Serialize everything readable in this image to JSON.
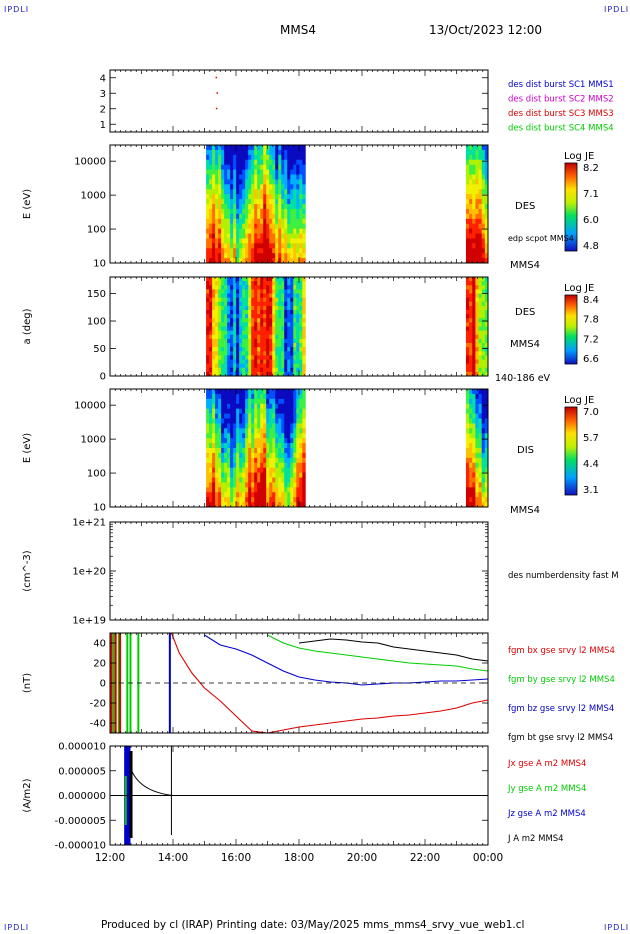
{
  "corner_tags": [
    "IPDLI",
    "IPDLI",
    "IPDLI",
    "IPDLI"
  ],
  "header": {
    "spacecraft": "MMS4",
    "datetime": "13/Oct/2023 12:00"
  },
  "footer": {
    "text": "Produced by cl (IRAP)   Printing date: 03/May/2025   mms_mms4_srvy_vue_web1.cl"
  },
  "colors": {
    "blue": "#0000cc",
    "magenta": "#cc00cc",
    "red": "#dd0000",
    "green": "#00cc00",
    "black": "#000000"
  },
  "chart_data": [
    {
      "type": "scatter",
      "id": "burst",
      "yticks": [
        "4",
        "3",
        "2",
        "1"
      ],
      "ylim": [
        0.5,
        4.5
      ],
      "points": [
        {
          "x": 15.35,
          "y": 4
        },
        {
          "x": 15.38,
          "y": 3
        },
        {
          "x": 15.36,
          "y": 2
        }
      ],
      "legend": [
        {
          "text": "des dist burst SC1 MMS1",
          "color": "#0000cc"
        },
        {
          "text": "des dist burst SC2 MMS2",
          "color": "#cc00cc"
        },
        {
          "text": "des dist burst SC3 MMS3",
          "color": "#dd0000"
        },
        {
          "text": "des dist burst SC4 MMS4",
          "color": "#00cc00"
        }
      ]
    },
    {
      "type": "heatmap",
      "id": "des_energy",
      "ylabel": "E (eV)",
      "scale": "log",
      "yticks": [
        "10000",
        "1000",
        "100",
        "10"
      ],
      "ylim": [
        10,
        30000
      ],
      "data_intervals": [
        [
          15.05,
          18.2
        ],
        [
          23.3,
          24.0
        ]
      ],
      "right_labels": [
        "DES",
        "edp scpot MMS4",
        "MMS4"
      ],
      "colorbar": {
        "title": "Log JE",
        "ticks": [
          "8.2",
          "7.1",
          "6.0",
          "4.8"
        ]
      }
    },
    {
      "type": "heatmap",
      "id": "des_pitch",
      "ylabel": "a (deg)",
      "yticks": [
        "150",
        "100",
        "50",
        "0"
      ],
      "ylim": [
        0,
        180
      ],
      "data_intervals": [
        [
          15.05,
          18.2
        ],
        [
          23.3,
          24.0
        ]
      ],
      "right_labels": [
        "DES",
        "MMS4",
        "140-186 eV"
      ],
      "colorbar": {
        "title": "Log JE",
        "ticks": [
          "8.4",
          "7.8",
          "7.2",
          "6.6"
        ]
      }
    },
    {
      "type": "heatmap",
      "id": "dis_energy",
      "ylabel": "E (eV)",
      "scale": "log",
      "yticks": [
        "10000",
        "1000",
        "100",
        "10"
      ],
      "ylim": [
        10,
        30000
      ],
      "data_intervals": [
        [
          15.05,
          18.2
        ],
        [
          23.3,
          24.0
        ]
      ],
      "right_labels": [
        "DIS",
        "MMS4"
      ],
      "colorbar": {
        "title": "Log JE",
        "ticks": [
          "7.0",
          "5.7",
          "4.4",
          "3.1"
        ]
      }
    },
    {
      "type": "line",
      "id": "density",
      "ylabel": "(cm^-3)",
      "scale": "log",
      "yticks": [
        "1e+21",
        "1e+20",
        "1e+19"
      ],
      "ylim": [
        1e+19,
        1e+21
      ],
      "series": [],
      "legend": [
        {
          "text": "des numberdensity fast M",
          "color": "#000000"
        }
      ]
    },
    {
      "type": "line",
      "id": "bfield",
      "ylabel": "(nT)",
      "yticks": [
        "40",
        "20",
        "0",
        "-20",
        "-40"
      ],
      "ylim": [
        -50,
        50
      ],
      "x": [
        13.95,
        14.2,
        14.6,
        15.0,
        15.5,
        16.0,
        16.5,
        17.0,
        17.5,
        18.0,
        18.5,
        19.0,
        19.5,
        20.0,
        20.5,
        21.0,
        21.5,
        22.0,
        22.5,
        23.0,
        23.5,
        24.0
      ],
      "series": [
        {
          "name": "bx",
          "color": "#dd0000",
          "values": [
            51,
            30,
            10,
            -5,
            -18,
            -33,
            -48,
            -50,
            -47,
            -44,
            -42,
            -40,
            -38,
            -36,
            -35,
            -33,
            -32,
            -30,
            -28,
            -25,
            -20,
            -17
          ]
        },
        {
          "name": "by",
          "color": "#00cc00",
          "values": [
            null,
            null,
            null,
            null,
            null,
            null,
            null,
            48,
            40,
            35,
            32,
            30,
            28,
            26,
            24,
            22,
            20,
            19,
            18,
            17,
            14,
            12
          ]
        },
        {
          "name": "bz",
          "color": "#0000cc",
          "values": [
            null,
            null,
            null,
            48,
            38,
            34,
            28,
            20,
            12,
            6,
            3,
            1,
            0,
            -2,
            -1,
            0,
            0,
            1,
            2,
            2,
            3,
            4
          ]
        },
        {
          "name": "bt",
          "color": "#000000",
          "values": [
            null,
            null,
            null,
            null,
            null,
            null,
            null,
            null,
            null,
            40,
            42,
            44,
            43,
            41,
            40,
            36,
            34,
            32,
            30,
            28,
            24,
            22
          ]
        }
      ],
      "legend": [
        {
          "text": "fgm bx gse srvy l2 MMS4",
          "color": "#dd0000"
        },
        {
          "text": "fgm by gse srvy l2 MMS4",
          "color": "#00cc00"
        },
        {
          "text": "fgm bz gse srvy l2 MMS4",
          "color": "#0000cc"
        },
        {
          "text": "fgm bt gse srvy l2 MMS4",
          "color": "#000000"
        }
      ]
    },
    {
      "type": "line",
      "id": "current",
      "ylabel": "(A/m2)",
      "yticks": [
        "0.000010",
        "0.000005",
        "0.000000",
        "-0.000005",
        "-0.000010"
      ],
      "ylim": [
        -1e-05,
        1e-05
      ],
      "xticks": [
        "12:00",
        "14:00",
        "16:00",
        "18:00",
        "20:00",
        "22:00",
        "00:00"
      ],
      "xlim": [
        12,
        24
      ],
      "legend": [
        {
          "text": "Jx gse A m2 MMS4",
          "color": "#dd0000"
        },
        {
          "text": "Jy gse A m2 MMS4",
          "color": "#00cc00"
        },
        {
          "text": "Jz gse A m2 MMS4",
          "color": "#0000cc"
        },
        {
          "text": "J A m2 MMS4",
          "color": "#000000"
        }
      ]
    }
  ]
}
